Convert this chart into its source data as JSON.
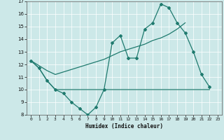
{
  "bg_color": "#cce8e8",
  "grid_color": "#ffffff",
  "line_color": "#1f7a6e",
  "xlabel": "Humidex (Indice chaleur)",
  "xlim": [
    -0.5,
    23.5
  ],
  "ylim": [
    8,
    17
  ],
  "xticks": [
    0,
    1,
    2,
    3,
    4,
    5,
    6,
    7,
    8,
    9,
    10,
    11,
    12,
    13,
    14,
    15,
    16,
    17,
    18,
    19,
    20,
    21,
    22,
    23
  ],
  "yticks": [
    8,
    9,
    10,
    11,
    12,
    13,
    14,
    15,
    16,
    17
  ],
  "line1_x": [
    0,
    1,
    2,
    3,
    4,
    5,
    6,
    7,
    8,
    9,
    10,
    11,
    12,
    13,
    14,
    15,
    16,
    17,
    18,
    19,
    20,
    21,
    22
  ],
  "line1_y": [
    12.3,
    11.7,
    10.7,
    10.0,
    9.7,
    9.0,
    8.5,
    8.0,
    8.6,
    10.0,
    13.7,
    14.3,
    12.5,
    12.5,
    14.8,
    15.3,
    16.8,
    16.5,
    15.3,
    14.5,
    13.0,
    11.2,
    10.2
  ],
  "line2_x": [
    0,
    1,
    2,
    3,
    4,
    5,
    6,
    7,
    8,
    9,
    10,
    11,
    12,
    13,
    14,
    15,
    16,
    17,
    18,
    19,
    20,
    21,
    22
  ],
  "line2_y": [
    12.3,
    11.7,
    10.7,
    10.0,
    10.0,
    10.0,
    10.0,
    10.0,
    10.0,
    10.0,
    10.0,
    10.0,
    10.0,
    10.0,
    10.0,
    10.0,
    10.0,
    10.0,
    10.0,
    10.0,
    10.0,
    10.0,
    10.0
  ],
  "line3_x": [
    0,
    1,
    2,
    3,
    4,
    5,
    6,
    7,
    8,
    9,
    10,
    11,
    12,
    13,
    14,
    15,
    16,
    17,
    18,
    19
  ],
  "line3_y": [
    12.3,
    11.9,
    11.5,
    11.2,
    11.4,
    11.6,
    11.8,
    12.0,
    12.2,
    12.4,
    12.7,
    13.0,
    13.2,
    13.4,
    13.6,
    13.9,
    14.1,
    14.4,
    14.8,
    15.3
  ]
}
